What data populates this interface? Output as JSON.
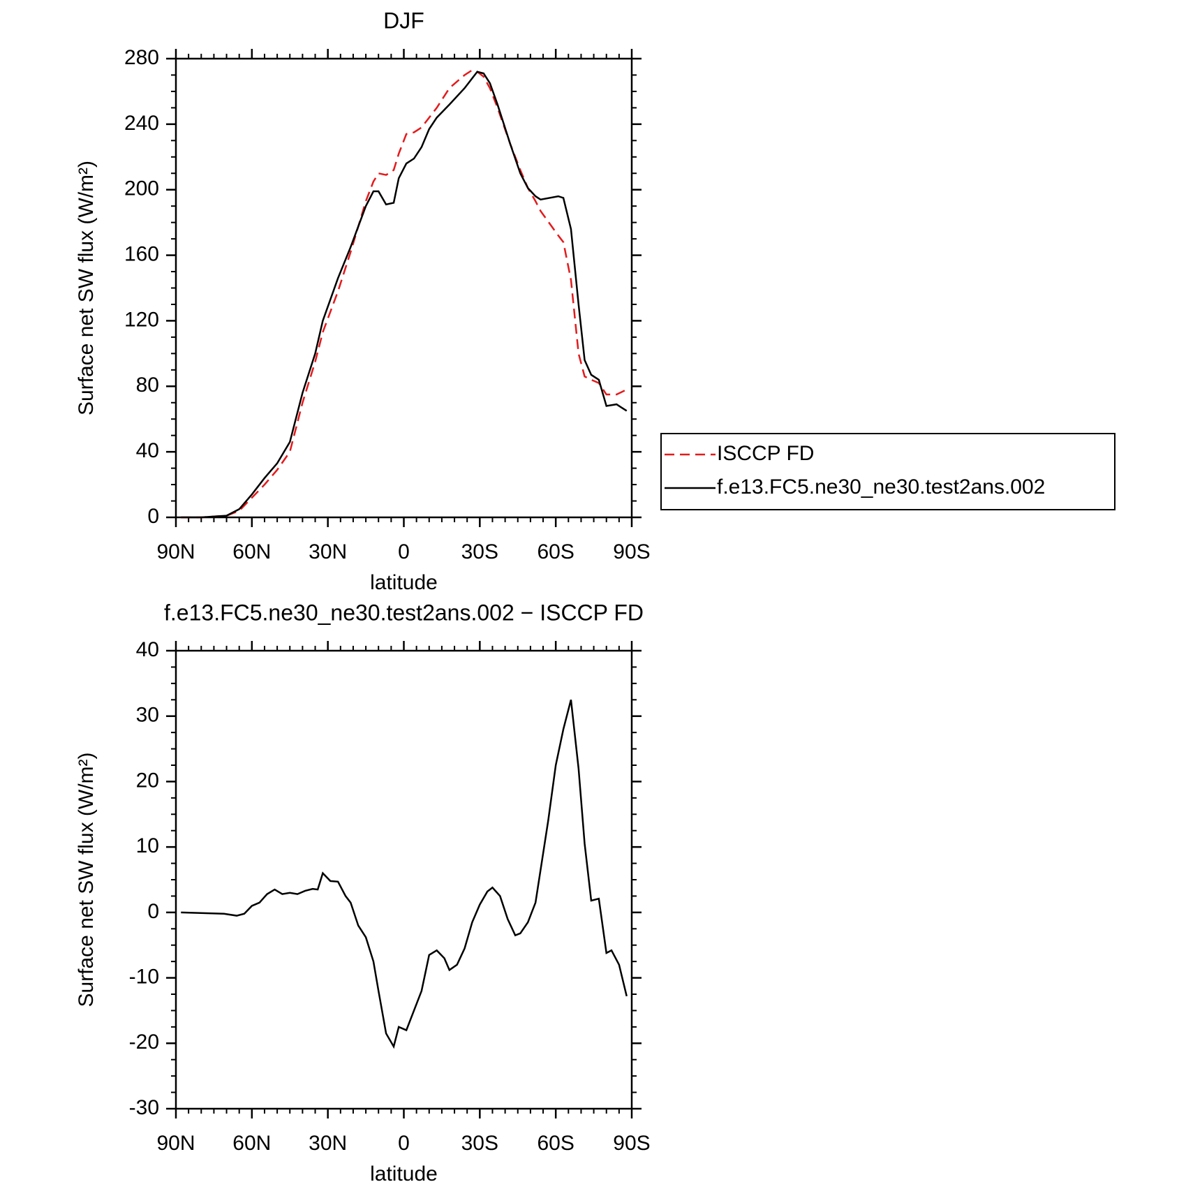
{
  "chart_data": [
    {
      "type": "line",
      "title": "DJF",
      "xlabel": "latitude",
      "ylabel": "Surface net SW flux (W/m²)",
      "x": [
        88,
        80,
        70,
        65,
        60,
        55,
        50,
        45,
        40,
        35,
        32,
        26,
        21,
        15,
        12,
        10,
        7,
        4,
        2,
        -1,
        -4,
        -7,
        -10,
        -13,
        -18,
        -24,
        -27,
        -29,
        -31.5,
        -34,
        -37,
        -42,
        -46,
        -49,
        -52,
        -54,
        -61,
        -63,
        -66,
        -69,
        -71.4,
        -74,
        -77,
        -80,
        -84,
        -88
      ],
      "series": [
        {
          "name": "ISCCP FD",
          "color": "#e41a1c",
          "linestyle": "dashed",
          "values": [
            0,
            0,
            1,
            4,
            12,
            20,
            29,
            40,
            70,
            95,
            113,
            138,
            162,
            193,
            205,
            210,
            209,
            212,
            222,
            234,
            235,
            238,
            244,
            250,
            262,
            270,
            273,
            272,
            269,
            262,
            250,
            228,
            212,
            201,
            193,
            187,
            172,
            168,
            145,
            100,
            86,
            84,
            82,
            75,
            75,
            78
          ]
        },
        {
          "name": "f.e13.FC5.ne30_ne30.test2ans.002",
          "color": "#000000",
          "linestyle": "solid",
          "values": [
            0,
            0,
            1,
            5,
            14,
            24,
            33,
            46,
            76,
            100,
            120,
            146,
            165,
            190,
            199,
            199,
            191,
            192,
            207,
            216,
            219,
            226,
            237,
            244,
            252,
            262,
            268,
            272,
            271,
            265,
            252,
            228,
            210,
            201,
            196,
            194,
            196,
            195,
            176,
            130,
            96,
            87,
            84,
            68,
            69,
            65
          ]
        }
      ],
      "xlim": [
        90,
        -90
      ],
      "xticks": [
        {
          "value": 90,
          "label": "90N"
        },
        {
          "value": 60,
          "label": "60N"
        },
        {
          "value": 30,
          "label": "30N"
        },
        0,
        {
          "value": -30,
          "label": "30S"
        },
        {
          "value": -60,
          "label": "60S"
        },
        {
          "value": -90,
          "label": "90S"
        }
      ],
      "ylim": [
        0,
        280
      ],
      "yticks": [
        0,
        40,
        80,
        120,
        160,
        200,
        240,
        280
      ],
      "legend": "outside-right"
    },
    {
      "type": "line",
      "title": "f.e13.FC5.ne30_ne30.test2ans.002 − ISCCP FD",
      "xlabel": "latitude",
      "ylabel": "Surface net SW flux (W/m²)",
      "x": [
        88,
        71,
        66,
        63,
        60,
        57,
        54,
        51,
        48,
        45,
        42,
        39,
        36,
        34,
        32,
        29,
        26,
        23,
        21,
        18,
        15,
        12,
        10,
        7,
        4,
        2,
        -1,
        -4,
        -7,
        -10,
        -13,
        -16,
        -18,
        -21,
        -24,
        -27,
        -30,
        -33,
        -35,
        -38,
        -41,
        -44,
        -46,
        -49,
        -52,
        -54,
        -57,
        -60,
        -63,
        -66,
        -69,
        -71.4,
        -74,
        -77,
        -80,
        -82,
        -85,
        -88
      ],
      "values": [
        0,
        -0.2,
        -0.5,
        -0.2,
        1,
        1.5,
        2.8,
        3.5,
        2.8,
        3,
        2.8,
        3.3,
        3.6,
        3.5,
        6,
        4.8,
        4.7,
        2.5,
        1.5,
        -2,
        -3.8,
        -7.5,
        -12,
        -18.5,
        -20.5,
        -17.5,
        -18,
        -15,
        -12,
        -6.5,
        -5.8,
        -7,
        -8.8,
        -8,
        -5.5,
        -1.5,
        1.2,
        3.2,
        3.8,
        2.5,
        -1,
        -3.5,
        -3.2,
        -1.5,
        1.5,
        6.5,
        14,
        22.5,
        28,
        32.5,
        22,
        10.5,
        1.8,
        2.1,
        -6.2,
        -5.8,
        -8,
        -12.8
      ],
      "color": "#000000",
      "xlim": [
        90,
        -90
      ],
      "xticks": [
        {
          "value": 90,
          "label": "90N"
        },
        {
          "value": 60,
          "label": "60N"
        },
        {
          "value": 30,
          "label": "30N"
        },
        0,
        {
          "value": -30,
          "label": "30S"
        },
        {
          "value": -60,
          "label": "60S"
        },
        {
          "value": -90,
          "label": "90S"
        }
      ],
      "ylim": [
        -30,
        40
      ],
      "yticks": [
        -30,
        -20,
        -10,
        0,
        10,
        20,
        30,
        40
      ]
    }
  ]
}
